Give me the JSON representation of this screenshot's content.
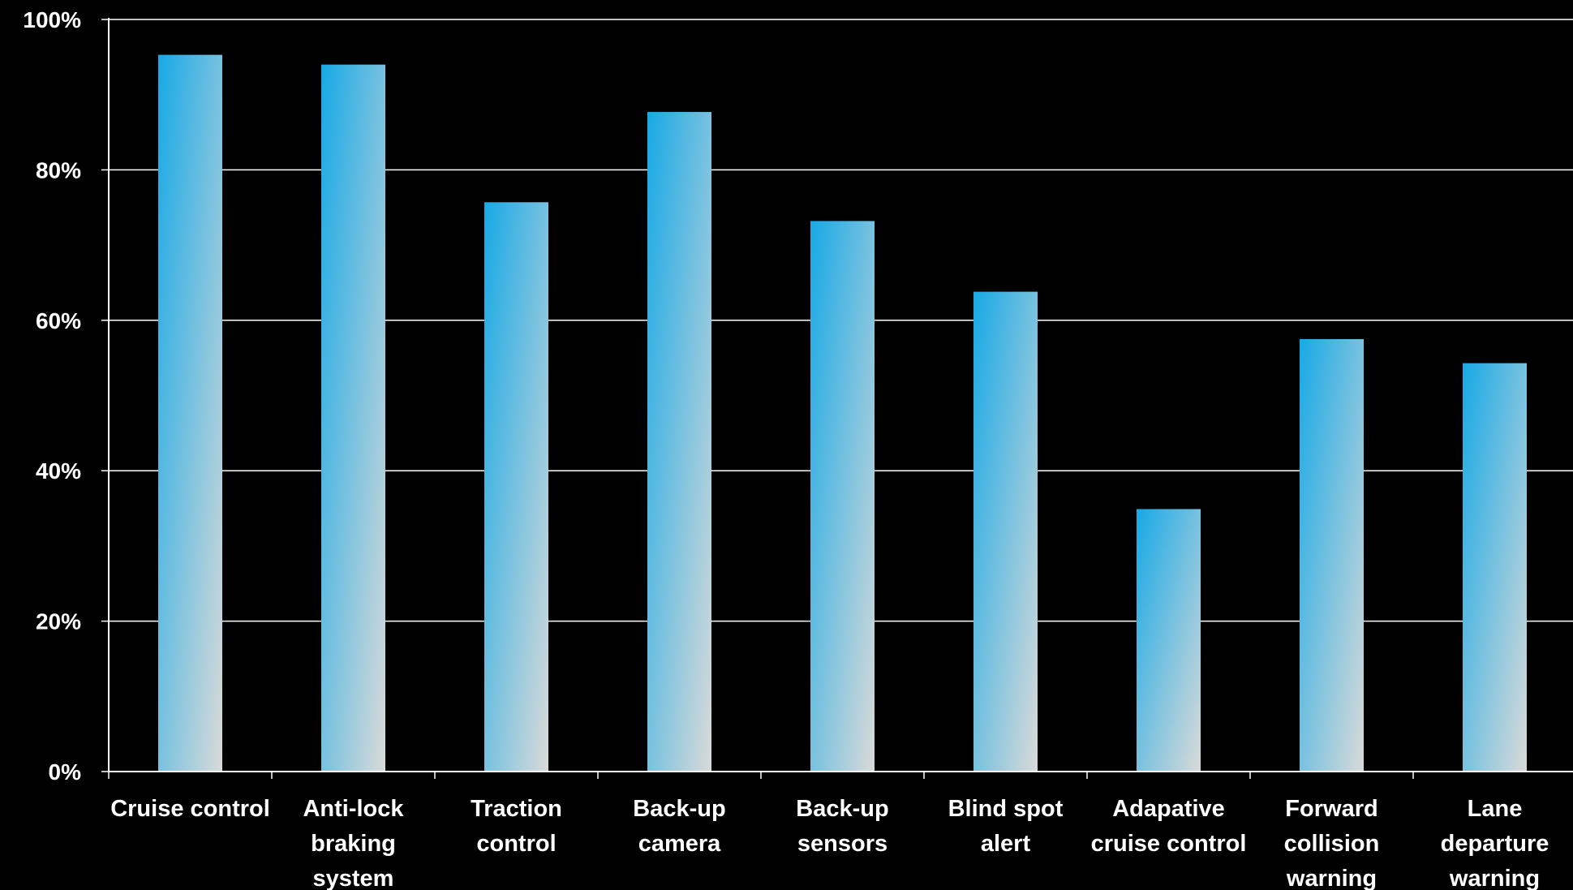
{
  "chart_data": {
    "type": "bar",
    "categories": [
      [
        "Cruise control"
      ],
      [
        "Anti-lock",
        "braking",
        "system"
      ],
      [
        "Traction",
        "control"
      ],
      [
        "Back-up",
        "camera"
      ],
      [
        "Back-up",
        "sensors"
      ],
      [
        "Blind spot",
        "alert"
      ],
      [
        "Adapative",
        "cruise control"
      ],
      [
        "Forward",
        "collision",
        "warning"
      ],
      [
        "Lane",
        "departure",
        "warning"
      ]
    ],
    "values": [
      95.3,
      94.0,
      75.7,
      87.7,
      73.2,
      63.8,
      34.9,
      57.5,
      54.3
    ],
    "yticks": [
      "0%",
      "20%",
      "40%",
      "60%",
      "80%",
      "100%"
    ],
    "ylim": [
      0,
      100
    ],
    "grid": true,
    "colors": {
      "background": "#000000",
      "bar_top": "#17a9e6",
      "bar_bottom": "#d9dad9",
      "grid": "#ffffff",
      "text": "#ffffff"
    }
  }
}
